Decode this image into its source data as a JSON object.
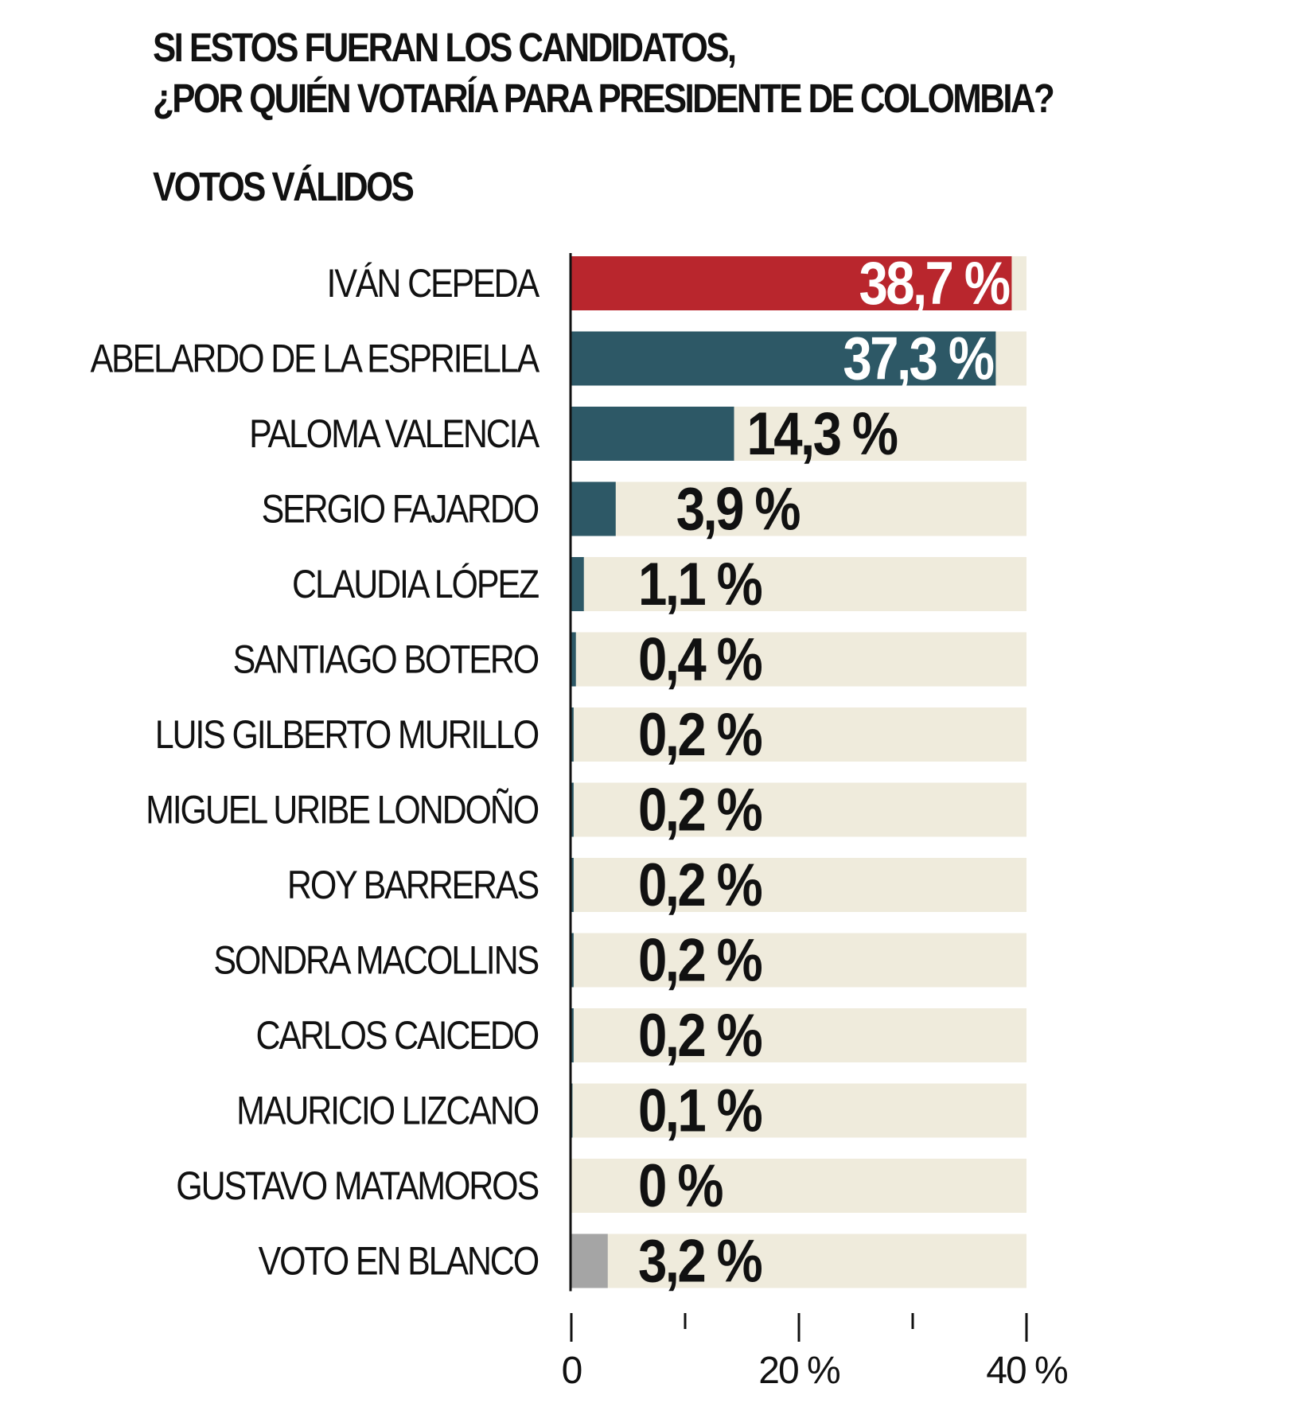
{
  "header": {
    "title_line1": "SI ESTOS FUERAN LOS CANDIDATOS,",
    "title_line2": "¿POR QUIÉN VOTARÍA PARA PRESIDENTE DE COLOMBIA?",
    "subtitle": "VOTOS VÁLIDOS"
  },
  "colors": {
    "highlight": "#b9262d",
    "candidate": "#2d5866",
    "blank": "#a5a5a5",
    "track": "#efebdc",
    "axis": "#111111",
    "label_light": "#ffffff",
    "label_dark": "#111111"
  },
  "chart_data": {
    "type": "bar",
    "orientation": "horizontal",
    "title": "SI ESTOS FUERAN LOS CANDIDATOS, ¿POR QUIÉN VOTARÍA PARA PRESIDENTE DE COLOMBIA?",
    "subtitle": "VOTOS VÁLIDOS",
    "categories": [
      "IVÁN CEPEDA",
      "ABELARDO DE LA ESPRIELLA",
      "PALOMA VALENCIA",
      "SERGIO FAJARDO",
      "CLAUDIA LÓPEZ",
      "SANTIAGO BOTERO",
      "LUIS GILBERTO MURILLO",
      "MIGUEL URIBE LONDOÑO",
      "ROY BARRERAS",
      "SONDRA MACOLLINS",
      "CARLOS CAICEDO",
      "MAURICIO LIZCANO",
      "GUSTAVO MATAMOROS",
      "VOTO EN BLANCO"
    ],
    "values": [
      38.7,
      37.3,
      14.3,
      3.9,
      1.1,
      0.4,
      0.2,
      0.2,
      0.2,
      0.2,
      0.2,
      0.1,
      0,
      3.2
    ],
    "value_labels": [
      "38,7 %",
      "37,3 %",
      "14,3 %",
      "3,9 %",
      "1,1 %",
      "0,4 %",
      "0,2 %",
      "0,2 %",
      "0,2 %",
      "0,2 %",
      "0,2 %",
      "0,1 %",
      "0 %",
      "3,2 %"
    ],
    "bar_color_keys": [
      "highlight",
      "candidate",
      "candidate",
      "candidate",
      "candidate",
      "candidate",
      "candidate",
      "candidate",
      "candidate",
      "candidate",
      "candidate",
      "candidate",
      "candidate",
      "blank"
    ],
    "xlim": [
      0,
      40
    ],
    "x_major_ticks": [
      0,
      20,
      40
    ],
    "x_minor_ticks": [
      10,
      30
    ],
    "x_tick_labels": [
      "0",
      "20 %",
      "40 %"
    ],
    "grid": false,
    "legend": "none"
  }
}
